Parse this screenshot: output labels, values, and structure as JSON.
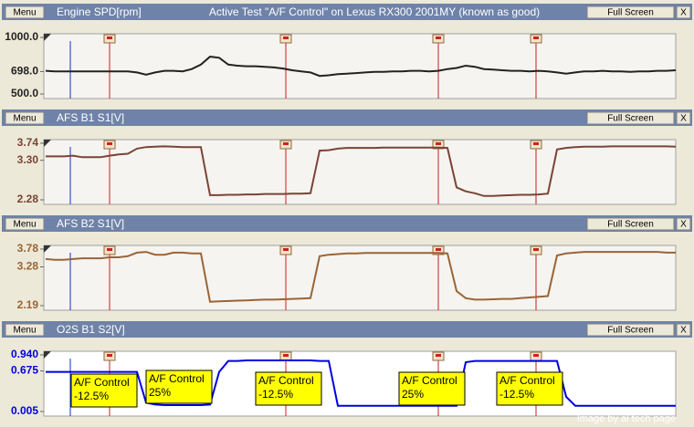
{
  "chart_data": [
    {
      "type": "line",
      "title": "Engine SPD[rpm]",
      "subtitle": "Active Test \"A/F Control\" on Lexus RX300 2001MY (known as good)",
      "menu_button": "Menu",
      "full_screen_button": "Full Screen",
      "close_button": "X",
      "color": "#222222",
      "ylim": [
        500,
        1000
      ],
      "yticks": [
        {
          "value": 500,
          "label": "500.0"
        },
        {
          "value": 698,
          "label": "698.0"
        },
        {
          "value": 1000,
          "label": "1000.0"
        }
      ],
      "values": [
        705,
        700,
        700,
        700,
        700,
        700,
        700,
        700,
        700,
        700,
        690,
        670,
        690,
        705,
        705,
        700,
        720,
        760,
        830,
        820,
        760,
        750,
        745,
        745,
        740,
        735,
        725,
        710,
        700,
        690,
        660,
        665,
        675,
        680,
        685,
        690,
        695,
        695,
        700,
        700,
        705,
        705,
        700,
        705,
        720,
        730,
        750,
        740,
        720,
        715,
        710,
        705,
        705,
        700,
        705,
        700,
        690,
        680,
        690,
        700,
        700,
        705,
        700,
        700,
        695,
        700,
        700,
        705,
        705,
        710
      ]
    },
    {
      "type": "line",
      "title": "AFS B1 S1[V]",
      "menu_button": "Menu",
      "full_screen_button": "Full Screen",
      "close_button": "X",
      "color": "#7a4436",
      "ylim": [
        2.28,
        3.74
      ],
      "yticks": [
        2.28,
        {
          "value": 3.3,
          "label": "3.30"
        },
        3.74
      ],
      "values": [
        3.4,
        3.4,
        3.4,
        3.42,
        3.38,
        3.38,
        3.38,
        3.42,
        3.45,
        3.47,
        3.6,
        3.64,
        3.65,
        3.66,
        3.65,
        3.64,
        3.64,
        3.64,
        2.4,
        2.4,
        2.41,
        2.41,
        2.42,
        2.42,
        2.43,
        2.43,
        2.43,
        2.44,
        2.44,
        2.45,
        3.55,
        3.56,
        3.6,
        3.62,
        3.62,
        3.62,
        3.62,
        3.63,
        3.63,
        3.63,
        3.63,
        3.63,
        3.63,
        3.63,
        3.62,
        2.6,
        2.5,
        2.45,
        2.38,
        2.38,
        2.39,
        2.4,
        2.41,
        2.41,
        2.42,
        2.44,
        3.58,
        3.62,
        3.64,
        3.65,
        3.65,
        3.65,
        3.66,
        3.66,
        3.66,
        3.66,
        3.66,
        3.66,
        3.66,
        3.65
      ]
    },
    {
      "type": "line",
      "title": "AFS B2 S1[V]",
      "menu_button": "Menu",
      "full_screen_button": "Full Screen",
      "close_button": "X",
      "color": "#9a6436",
      "ylim": [
        2.19,
        3.78
      ],
      "yticks": [
        2.19,
        3.28,
        3.78
      ],
      "values": [
        3.5,
        3.48,
        3.48,
        3.5,
        3.52,
        3.52,
        3.52,
        3.55,
        3.55,
        3.58,
        3.68,
        3.7,
        3.62,
        3.62,
        3.68,
        3.68,
        3.66,
        3.66,
        2.3,
        2.31,
        2.32,
        2.33,
        2.34,
        2.35,
        2.36,
        2.36,
        2.37,
        2.38,
        2.39,
        2.4,
        3.58,
        3.62,
        3.64,
        3.66,
        3.66,
        3.67,
        3.67,
        3.67,
        3.67,
        3.67,
        3.67,
        3.67,
        3.67,
        3.67,
        3.66,
        2.6,
        2.4,
        2.36,
        2.36,
        2.37,
        2.38,
        2.38,
        2.4,
        2.42,
        2.44,
        2.46,
        3.6,
        3.66,
        3.68,
        3.7,
        3.7,
        3.7,
        3.7,
        3.7,
        3.7,
        3.7,
        3.7,
        3.7,
        3.68,
        3.68
      ]
    },
    {
      "type": "line",
      "title": "O2S B1 S2[V]",
      "menu_button": "Menu",
      "full_screen_button": "Full Screen",
      "close_button": "X",
      "color": "#0000e0",
      "ylim": [
        0.005,
        0.94
      ],
      "yticks": [
        0.005,
        0.675,
        {
          "value": 0.94,
          "label": "0.940"
        }
      ],
      "values": [
        0.66,
        0.66,
        0.66,
        0.66,
        0.66,
        0.66,
        0.66,
        0.66,
        0.66,
        0.66,
        0.66,
        0.15,
        0.12,
        0.11,
        0.11,
        0.11,
        0.11,
        0.11,
        0.12,
        0.66,
        0.84,
        0.84,
        0.85,
        0.85,
        0.85,
        0.85,
        0.85,
        0.85,
        0.85,
        0.85,
        0.84,
        0.84,
        0.1,
        0.1,
        0.1,
        0.1,
        0.1,
        0.1,
        0.1,
        0.1,
        0.1,
        0.1,
        0.1,
        0.1,
        0.1,
        0.1,
        0.82,
        0.84,
        0.84,
        0.84,
        0.84,
        0.84,
        0.84,
        0.84,
        0.84,
        0.84,
        0.84,
        0.25,
        0.1,
        0.1,
        0.1,
        0.1,
        0.1,
        0.1,
        0.1,
        0.1,
        0.1,
        0.1,
        0.1,
        0.1
      ],
      "annotations": [
        [
          "A/F Control",
          "-12.5%"
        ],
        [
          "A/F Control",
          "25%"
        ],
        [
          "A/F Control",
          "-12.5%"
        ],
        [
          "A/F Control",
          "25%"
        ],
        [
          "A/F Control",
          "-12.5%"
        ]
      ]
    }
  ],
  "footer": "Image by al tech page"
}
